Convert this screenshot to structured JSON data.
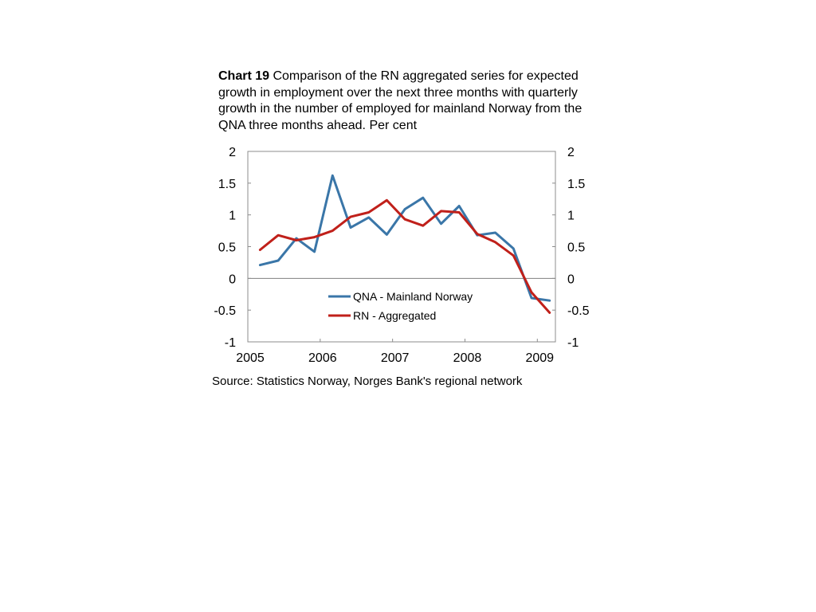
{
  "title": {
    "prefix": "Chart 19",
    "text": " Comparison of the RN aggregated series for expected growth in employment over the next three months with quarterly growth in the number of employed for mainland Norway from the QNA three months ahead. Per cent"
  },
  "source": "Source: Statistics Norway, Norges Bank's regional network",
  "chart_data": {
    "type": "line",
    "title": "Chart 19 Comparison of the RN aggregated series for expected growth in employment over the next three months with quarterly growth in the number of employed for mainland Norway from the QNA three months ahead. Per cent",
    "xlabel": "",
    "ylabel": "",
    "xlim": [
      2005,
      2009.25
    ],
    "ylim": [
      -1,
      2
    ],
    "x_ticks": [
      "2005",
      "2006",
      "2007",
      "2008",
      "2009"
    ],
    "y_ticks": [
      "2",
      "1.5",
      "1",
      "0.5",
      "0",
      "-0.5",
      "-1"
    ],
    "grid": false,
    "secondary_axis": true,
    "legend_position": "center-bottom",
    "x": [
      2005.17,
      2005.42,
      2005.67,
      2005.92,
      2006.17,
      2006.42,
      2006.67,
      2006.92,
      2007.17,
      2007.42,
      2007.67,
      2007.92,
      2008.17,
      2008.42,
      2008.67,
      2008.92,
      2009.17
    ],
    "series": [
      {
        "name": "QNA - Mainland Norway",
        "color": "#3a76a8",
        "values": [
          0.21,
          0.28,
          0.63,
          0.42,
          1.62,
          0.8,
          0.96,
          0.69,
          1.09,
          1.27,
          0.86,
          1.14,
          0.68,
          0.72,
          0.47,
          -0.31,
          -0.35
        ]
      },
      {
        "name": "RN - Aggregated",
        "color": "#c0201a",
        "values": [
          0.45,
          0.68,
          0.6,
          0.65,
          0.75,
          0.97,
          1.04,
          1.23,
          0.93,
          0.83,
          1.06,
          1.04,
          0.7,
          0.57,
          0.36,
          -0.22,
          -0.54
        ]
      }
    ]
  }
}
